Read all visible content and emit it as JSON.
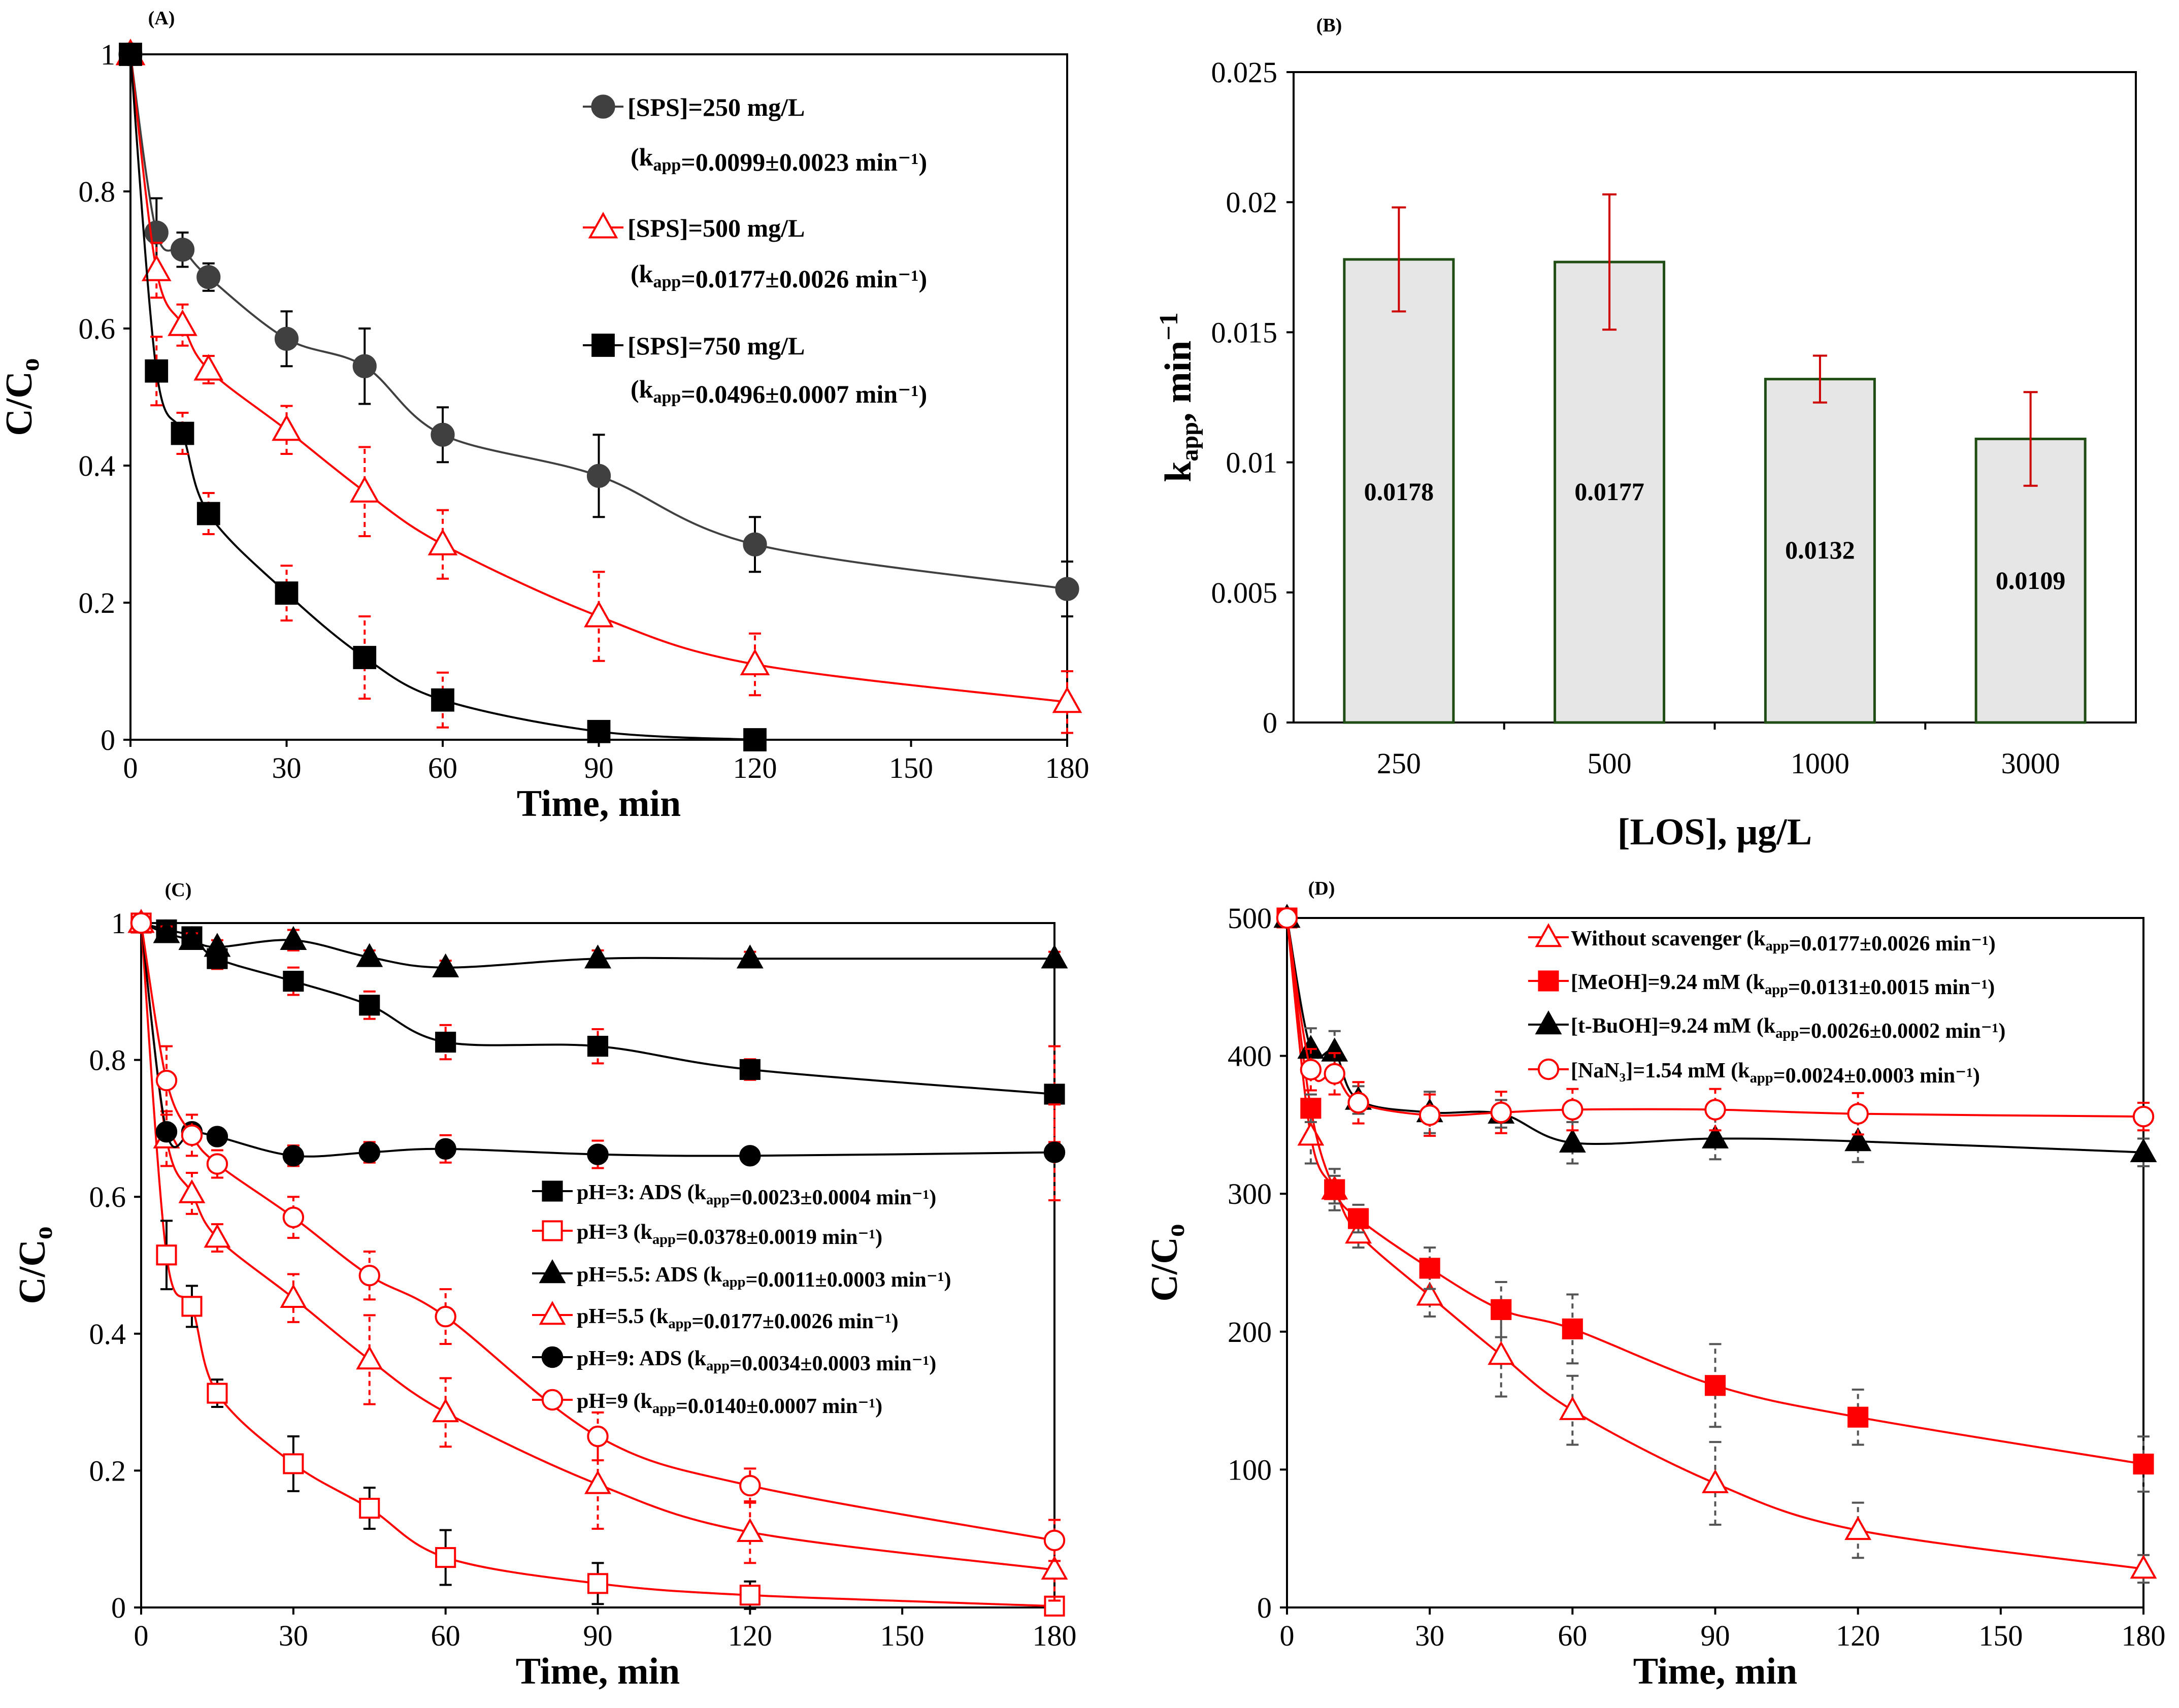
{
  "chart_data": [
    {
      "panel": "(A)",
      "type": "line",
      "xlabel": "Time, min",
      "ylabel": "C/Co",
      "xlim": [
        0,
        180
      ],
      "ylim": [
        0,
        1
      ],
      "xticks": [
        "0",
        "30",
        "60",
        "90",
        "120",
        "150",
        "180"
      ],
      "yticks": [
        "0",
        "0.2",
        "0.4",
        "0.6",
        "0.8",
        "1"
      ],
      "legend_position": "top-right",
      "x": [
        0,
        5,
        10,
        15,
        30,
        45,
        60,
        90,
        120,
        180
      ],
      "series": [
        {
          "name": "[SPS]=250 mg/L",
          "kapp": "(kapp=0.0099±0.0023 min⁻¹)",
          "color": "#404040",
          "marker": "circle",
          "fill": true,
          "error_color": "#000000",
          "values": [
            1,
            0.74,
            0.715,
            0.675,
            0.585,
            0.545,
            0.445,
            0.385,
            0.285,
            0.22
          ],
          "errors": [
            0,
            0.05,
            0.025,
            0.02,
            0.04,
            0.055,
            0.04,
            0.06,
            0.04,
            0.04
          ]
        },
        {
          "name": "[SPS]=500 mg/L",
          "kapp": "(kapp=0.0177±0.0026 min⁻¹)",
          "color": "#ff0000",
          "marker": "triangle",
          "fill": false,
          "error_color": "#ff0000",
          "values": [
            1,
            0.685,
            0.605,
            0.54,
            0.452,
            0.362,
            0.285,
            0.18,
            0.11,
            0.055
          ],
          "errors": [
            0,
            0.04,
            0.03,
            0.02,
            0.035,
            0.065,
            0.05,
            0.065,
            0.045,
            0.045
          ]
        },
        {
          "name": "[SPS]=750 mg/L",
          "kapp": "(kapp=0.0496±0.0007 min⁻¹)",
          "color": "#000000",
          "marker": "square",
          "fill": true,
          "error_color": "#ff0000",
          "values": [
            1,
            0.538,
            0.447,
            0.33,
            0.214,
            0.12,
            0.058,
            0.012,
            0,
            null
          ],
          "errors": [
            0,
            0.05,
            0.03,
            0.03,
            0.04,
            0.06,
            0.04,
            0.01,
            0,
            0
          ]
        }
      ]
    },
    {
      "panel": "(B)",
      "type": "bar",
      "xlabel": "[LOS], μg/L",
      "ylabel": "kapp, min⁻¹",
      "ylim": [
        0,
        0.025
      ],
      "yticks": [
        "0",
        "0.005",
        "0.01",
        "0.015",
        "0.02",
        "0.025"
      ],
      "categories": [
        "250",
        "500",
        "1000",
        "3000"
      ],
      "values": [
        0.0178,
        0.0177,
        0.0132,
        0.0109
      ],
      "errors": [
        0.002,
        0.0026,
        0.0009,
        0.0018
      ],
      "labels": [
        "0.0178",
        "0.0177",
        "0.0132",
        "0.0109"
      ],
      "bar_color": "#e6e6e6",
      "bar_edge": "#1f4d14",
      "error_color": "#cc0000"
    },
    {
      "panel": "(C)",
      "type": "line",
      "xlabel": "Time, min",
      "ylabel": "C/Co",
      "xlim": [
        0,
        180
      ],
      "ylim": [
        0,
        1
      ],
      "xticks": [
        "0",
        "30",
        "60",
        "90",
        "120",
        "150",
        "180"
      ],
      "yticks": [
        "0",
        "0.2",
        "0.4",
        "0.6",
        "0.8",
        "1"
      ],
      "legend_position": "center-right",
      "x": [
        0,
        5,
        10,
        15,
        30,
        45,
        60,
        90,
        120,
        180
      ],
      "series": [
        {
          "name": "pH=3: ADS",
          "kapp": "(kapp=0.0023±0.0004 min⁻¹)",
          "color": "#000000",
          "marker": "square",
          "fill": true,
          "error_color": "#ff0000",
          "values": [
            1,
            0.99,
            0.98,
            0.948,
            0.915,
            0.88,
            0.826,
            0.82,
            0.786,
            0.75
          ],
          "errors": [
            0,
            0.01,
            0.01,
            0.015,
            0.02,
            0.02,
            0.025,
            0.025,
            0.015,
            0.07
          ]
        },
        {
          "name": "pH=3",
          "kapp": "(kapp=0.0378±0.0019 min⁻¹)",
          "color": "#ff0000",
          "marker": "square",
          "fill": false,
          "error_color": "#000000",
          "values": [
            1,
            0.515,
            0.44,
            0.313,
            0.21,
            0.145,
            0.073,
            0.035,
            0.018,
            0.002
          ],
          "errors": [
            0,
            0.05,
            0.03,
            0.02,
            0.04,
            0.03,
            0.04,
            0.03,
            0.02,
            0.01
          ]
        },
        {
          "name": "pH=5.5: ADS",
          "kapp": "(kapp=0.0011±0.0003 min⁻¹)",
          "color": "#000000",
          "marker": "triangle",
          "fill": true,
          "error_color": "#ff0000",
          "values": [
            1,
            0.985,
            0.975,
            0.965,
            0.975,
            0.95,
            0.935,
            0.948,
            0.948,
            0.948
          ],
          "errors": [
            0,
            0.01,
            0.01,
            0.01,
            0.015,
            0.01,
            0.01,
            0.012,
            0.01,
            0.01
          ]
        },
        {
          "name": "pH=5.5",
          "kapp": "(kapp=0.0177±0.0026 min⁻¹)",
          "color": "#ff0000",
          "marker": "triangle",
          "fill": false,
          "error_color": "#ff0000",
          "values": [
            1,
            0.685,
            0.605,
            0.54,
            0.452,
            0.362,
            0.285,
            0.18,
            0.11,
            0.055
          ],
          "errors": [
            0,
            0.04,
            0.03,
            0.02,
            0.035,
            0.065,
            0.05,
            0.065,
            0.045,
            0.045
          ]
        },
        {
          "name": "pH=9: ADS",
          "kapp": "(kapp=0.0034±0.0003 min⁻¹)",
          "color": "#000000",
          "marker": "circle",
          "fill": true,
          "error_color": "#ff0000",
          "values": [
            1,
            0.695,
            0.695,
            0.688,
            0.66,
            0.665,
            0.67,
            0.662,
            0.66,
            0.665
          ],
          "errors": [
            0,
            0.01,
            0.01,
            0.01,
            0.015,
            0.015,
            0.02,
            0.02,
            0.01,
            0.07
          ]
        },
        {
          "name": "pH=9",
          "kapp": "(kapp=0.0140±0.0007 min⁻¹)",
          "color": "#ff0000",
          "marker": "circle",
          "fill": false,
          "error_color": "#ff0000",
          "values": [
            1,
            0.77,
            0.69,
            0.648,
            0.57,
            0.485,
            0.425,
            0.25,
            0.178,
            0.098
          ],
          "errors": [
            0,
            0.05,
            0.03,
            0.02,
            0.03,
            0.035,
            0.04,
            0.035,
            0.025,
            0.03
          ]
        }
      ]
    },
    {
      "panel": "(D)",
      "type": "line",
      "xlabel": "Time, min",
      "ylabel": "C/Co",
      "xlim": [
        0,
        180
      ],
      "ylim": [
        0,
        500
      ],
      "xticks": [
        "0",
        "30",
        "60",
        "90",
        "120",
        "150",
        "180"
      ],
      "yticks": [
        "0",
        "100",
        "200",
        "300",
        "400",
        "500"
      ],
      "legend_position": "top-right",
      "x": [
        0,
        5,
        10,
        15,
        30,
        45,
        60,
        90,
        120,
        180
      ],
      "series": [
        {
          "name": "Without  scavenger",
          "kapp": "(kapp=0.0177±0.0026 min⁻¹)",
          "color": "#ff0000",
          "marker": "triangle",
          "fill": false,
          "error_color": "#555555",
          "values": [
            500,
            342,
            303,
            271,
            226,
            183,
            143,
            90,
            56,
            28
          ],
          "errors": [
            0,
            20,
            15,
            10,
            15,
            30,
            25,
            30,
            20,
            10
          ]
        },
        {
          "name": "[MeOH]=9.24 mM",
          "kapp": "(kapp=0.0131±0.0015 min⁻¹)",
          "color": "#ff0000",
          "marker": "square",
          "fill": true,
          "error_color": "#555555",
          "values": [
            500,
            362,
            303,
            282,
            246,
            216,
            202,
            161,
            138,
            104
          ],
          "errors": [
            0,
            10,
            10,
            10,
            15,
            20,
            25,
            30,
            20,
            20
          ]
        },
        {
          "name": "[t-BuOH]=9.24 mM",
          "kapp": "(kapp=0.0026±0.0002 min⁻¹)",
          "color": "#000000",
          "marker": "triangle",
          "fill": true,
          "error_color": "#555555",
          "values": [
            500,
            405,
            403,
            368,
            359,
            358,
            337,
            340,
            338,
            330
          ],
          "errors": [
            0,
            15,
            15,
            10,
            15,
            10,
            15,
            15,
            15,
            10
          ]
        },
        {
          "name": "[NaN₃]=1.54 mM",
          "kapp": "(kapp=0.0024±0.0003 min⁻¹)",
          "color": "#ff0000",
          "marker": "circle",
          "fill": false,
          "error_color": "#ff0000",
          "values": [
            500,
            390,
            387,
            366,
            357,
            359,
            361,
            361,
            358,
            356
          ],
          "errors": [
            0,
            15,
            15,
            15,
            15,
            15,
            15,
            15,
            15,
            10
          ]
        }
      ]
    }
  ]
}
